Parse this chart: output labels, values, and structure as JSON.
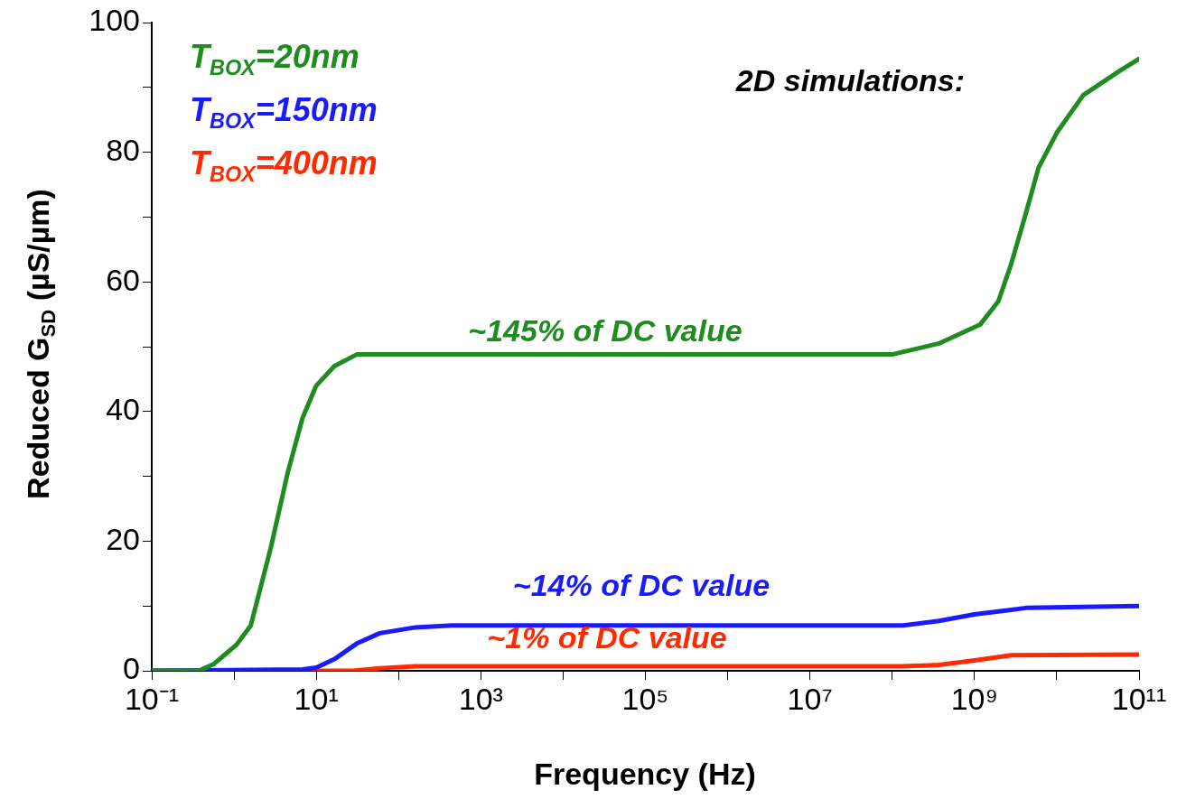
{
  "chart_data": {
    "type": "line",
    "title": "2D simulations:",
    "xlabel": "Frequency (Hz)",
    "ylabel": "Reduced G$_{SD}$ (µS/µm)",
    "log": "x",
    "grid": false,
    "legend": "top left",
    "marker": "none",
    "line_style": "solid",
    "xlim": [
      0.1,
      100000000000.0
    ],
    "ylim": [
      0,
      100
    ],
    "xticks": [
      {
        "value": 0.1,
        "label": "10⁻¹"
      },
      {
        "value": 1,
        "label": null
      },
      {
        "value": 10,
        "label": "10¹"
      },
      {
        "value": 100,
        "label": null
      },
      {
        "value": 1000,
        "label": "10³"
      },
      {
        "value": 10000,
        "label": null
      },
      {
        "value": 100000,
        "label": "10⁵"
      },
      {
        "value": 1000000,
        "label": null
      },
      {
        "value": 10000000,
        "label": "10⁷"
      },
      {
        "value": 100000000,
        "label": null
      },
      {
        "value": 1000000000,
        "label": "10⁹"
      },
      {
        "value": 10000000000,
        "label": null
      },
      {
        "value": 100000000000,
        "label": "10¹¹"
      }
    ],
    "yticks": [
      0,
      {
        "value": 10,
        "label": null
      },
      20,
      {
        "value": 30,
        "label": null
      },
      40,
      {
        "value": 50,
        "label": null
      },
      60,
      {
        "value": 70,
        "label": null
      },
      80,
      {
        "value": 90,
        "label": null
      },
      100
    ],
    "series": [
      {
        "name": "T$_{BOX}$=20nm",
        "color": "#1e8c1e",
        "x": [
          0.1,
          0.37,
          0.56,
          1.07,
          1.6,
          2.8,
          4.5,
          6.8,
          10,
          16.6,
          31,
          76,
          100000000.0,
          370000000.0,
          1170000000.0,
          1950000000.0,
          2800000000.0,
          4200000000.0,
          6000000000.0,
          10000000000.0,
          21000000000.0,
          59000000000.0,
          100000000000.0
        ],
        "values": [
          0,
          0,
          1,
          4,
          7,
          19,
          30.6,
          39,
          44,
          47,
          48.8,
          48.8,
          48.8,
          50.5,
          53.4,
          57,
          62.8,
          70.5,
          77.6,
          83,
          88.8,
          92.6,
          94.4
        ]
      },
      {
        "name": "T$_{BOX}$=150nm",
        "color": "#1a1aff",
        "x": [
          0.1,
          6.8,
          10,
          16.6,
          31,
          59,
          160,
          450,
          135000000.0,
          370000000.0,
          1000000000.0,
          2800000000.0,
          4200000000.0,
          100000000000.0
        ],
        "values": [
          0,
          0.2,
          0.5,
          1.8,
          4.2,
          5.8,
          6.7,
          7,
          7,
          7.7,
          8.7,
          9.4,
          9.7,
          10
        ]
      },
      {
        "name": "T$_{BOX}$=400nm",
        "color": "#ff2a00",
        "x": [
          0.1,
          28,
          59,
          160,
          135000000.0,
          370000000.0,
          1000000000.0,
          2800000000.0,
          100000000000.0
        ],
        "values": [
          0,
          0,
          0.4,
          0.7,
          0.7,
          0.9,
          1.6,
          2.4,
          2.5
        ]
      }
    ],
    "annotations": [
      "~145% of DC value",
      "~14% of DC value",
      "~1% of DC value"
    ]
  }
}
